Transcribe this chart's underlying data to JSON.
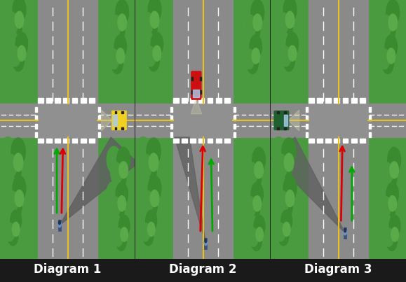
{
  "background_color": "#1a1a1a",
  "label_color": "#ffffff",
  "labels": [
    "Diagram 1",
    "Diagram 2",
    "Diagram 3"
  ],
  "label_fontsize": 12,
  "grass_bright": "#5aaa4a",
  "grass_dark": "#3a8a30",
  "grass_medium": "#4a9a40",
  "road_color": "#8a8a8a",
  "road_intersection": "#909090",
  "yellow_line": "#e8c020",
  "white_line": "#ffffff",
  "car_yellow": "#f0d020",
  "car_red": "#cc1010",
  "car_green": "#206030",
  "motorcycle_blue": "#3a5080",
  "motorcycle_light": "#7090c0",
  "arrow_red": "#dd0000",
  "arrow_green": "#00aa00",
  "shadow_dark": "#606060",
  "shadow_light": "#909090"
}
